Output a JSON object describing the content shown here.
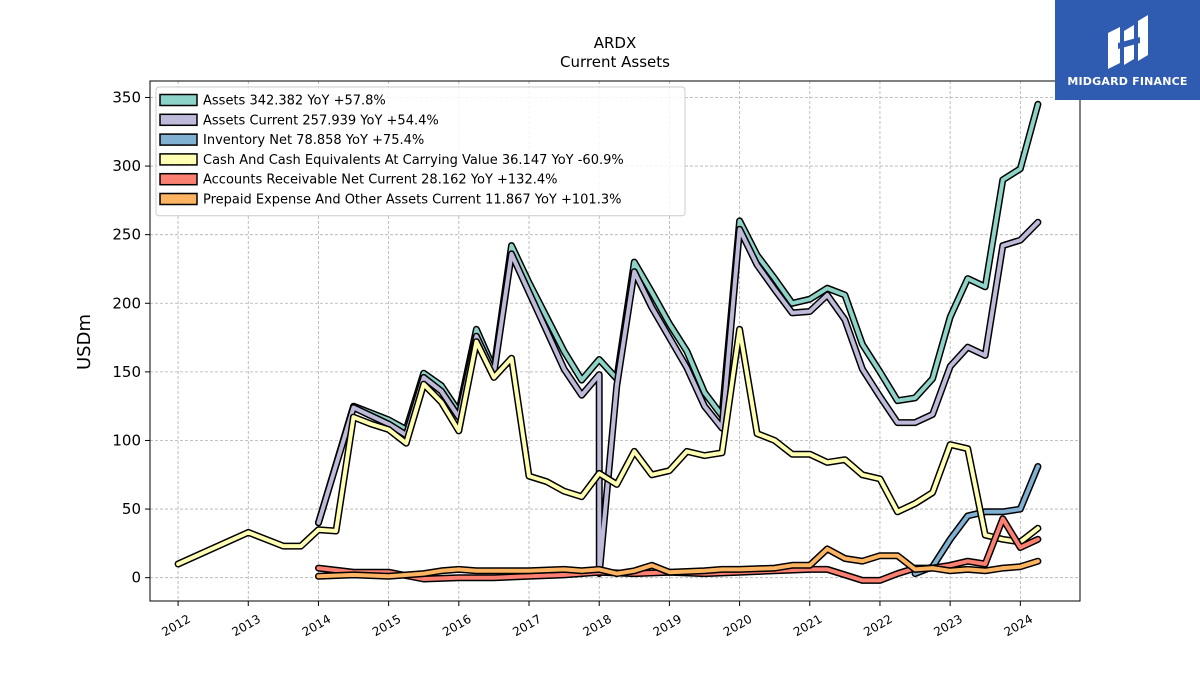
{
  "brand": {
    "name": "MIDGARD FINANCE",
    "bg_color": "#2f5bb0"
  },
  "chart_data": {
    "type": "line",
    "title": "ARDX",
    "subtitle": "Current  Assets",
    "ylabel": "USDm",
    "xlabel": "",
    "ylim": [
      -17,
      362
    ],
    "xlim": [
      2011.6,
      2024.85
    ],
    "yticks": [
      0,
      50,
      100,
      150,
      200,
      250,
      300,
      350
    ],
    "xticks": [
      2012,
      2013,
      2014,
      2015,
      2016,
      2017,
      2018,
      2019,
      2020,
      2021,
      2022,
      2023,
      2024
    ],
    "grid": true,
    "legend_position": "top-left",
    "series": [
      {
        "name": "Assets",
        "legend": "Assets  342.382 YoY +57.8%",
        "color": "#8dd3c7",
        "points": [
          [
            2014.0,
            40
          ],
          [
            2014.5,
            125
          ],
          [
            2014.75,
            120
          ],
          [
            2015.0,
            115
          ],
          [
            2015.25,
            108
          ],
          [
            2015.5,
            149
          ],
          [
            2015.75,
            140
          ],
          [
            2016.0,
            121
          ],
          [
            2016.25,
            181
          ],
          [
            2016.5,
            152
          ],
          [
            2016.75,
            242
          ],
          [
            2017.0,
            215
          ],
          [
            2017.25,
            190
          ],
          [
            2017.5,
            165
          ],
          [
            2017.75,
            144
          ],
          [
            2018.0,
            159
          ],
          [
            2018.25,
            145
          ],
          [
            2018.5,
            230
          ],
          [
            2018.75,
            208
          ],
          [
            2019.0,
            185
          ],
          [
            2019.25,
            165
          ],
          [
            2019.5,
            135
          ],
          [
            2019.75,
            118
          ],
          [
            2020.0,
            260
          ],
          [
            2020.25,
            235
          ],
          [
            2020.5,
            218
          ],
          [
            2020.75,
            200
          ],
          [
            2021.0,
            203
          ],
          [
            2021.25,
            211
          ],
          [
            2021.5,
            206
          ],
          [
            2021.75,
            170
          ],
          [
            2022.0,
            150
          ],
          [
            2022.25,
            129
          ],
          [
            2022.5,
            131
          ],
          [
            2022.75,
            145
          ],
          [
            2023.0,
            190
          ],
          [
            2023.25,
            218
          ],
          [
            2023.5,
            212
          ],
          [
            2023.75,
            290
          ],
          [
            2024.0,
            298
          ],
          [
            2024.25,
            345
          ]
        ]
      },
      {
        "name": "Assets Current",
        "legend": "Assets Current  257.939 YoY +54.4%",
        "color": "#bebada",
        "points": [
          [
            2014.0,
            40
          ],
          [
            2014.5,
            124
          ],
          [
            2014.75,
            118
          ],
          [
            2015.0,
            112
          ],
          [
            2015.25,
            104
          ],
          [
            2015.5,
            146
          ],
          [
            2015.75,
            136
          ],
          [
            2016.0,
            117
          ],
          [
            2016.25,
            176
          ],
          [
            2016.5,
            149
          ],
          [
            2016.75,
            236
          ],
          [
            2017.0,
            208
          ],
          [
            2017.25,
            180
          ],
          [
            2017.5,
            152
          ],
          [
            2017.75,
            133
          ],
          [
            2018.0,
            148
          ],
          [
            2018.001,
            3
          ],
          [
            2018.25,
            140
          ],
          [
            2018.5,
            223
          ],
          [
            2018.75,
            197
          ],
          [
            2019.0,
            175
          ],
          [
            2019.25,
            153
          ],
          [
            2019.5,
            125
          ],
          [
            2019.75,
            109
          ],
          [
            2020.0,
            254
          ],
          [
            2020.25,
            228
          ],
          [
            2020.5,
            210
          ],
          [
            2020.75,
            193
          ],
          [
            2021.0,
            194
          ],
          [
            2021.25,
            206
          ],
          [
            2021.5,
            188
          ],
          [
            2021.75,
            152
          ],
          [
            2022.0,
            132
          ],
          [
            2022.25,
            113
          ],
          [
            2022.5,
            113
          ],
          [
            2022.75,
            119
          ],
          [
            2023.0,
            154
          ],
          [
            2023.25,
            168
          ],
          [
            2023.5,
            162
          ],
          [
            2023.75,
            242
          ],
          [
            2024.0,
            246
          ],
          [
            2024.25,
            259
          ]
        ]
      },
      {
        "name": "Inventory Net",
        "legend": "Inventory Net  78.858 YoY +75.4%",
        "color": "#80b1d3",
        "points": [
          [
            2022.5,
            3
          ],
          [
            2022.75,
            8
          ],
          [
            2023.0,
            28
          ],
          [
            2023.25,
            45
          ],
          [
            2023.5,
            48
          ],
          [
            2023.75,
            48
          ],
          [
            2024.0,
            50
          ],
          [
            2024.25,
            81
          ]
        ]
      },
      {
        "name": "Cash And Cash Equivalents At Carrying Value",
        "legend": "Cash And Cash Equivalents At Carrying Value  36.147 YoY -60.9%",
        "color": "#ffffb3",
        "points": [
          [
            2012.0,
            10
          ],
          [
            2013.0,
            33
          ],
          [
            2013.5,
            23
          ],
          [
            2013.75,
            23
          ],
          [
            2014.0,
            35
          ],
          [
            2014.25,
            34
          ],
          [
            2014.5,
            117
          ],
          [
            2014.75,
            112
          ],
          [
            2015.0,
            108
          ],
          [
            2015.25,
            98
          ],
          [
            2015.5,
            141
          ],
          [
            2015.75,
            128
          ],
          [
            2016.0,
            107
          ],
          [
            2016.25,
            172
          ],
          [
            2016.5,
            146
          ],
          [
            2016.75,
            160
          ],
          [
            2017.0,
            74
          ],
          [
            2017.25,
            70
          ],
          [
            2017.5,
            63
          ],
          [
            2017.75,
            59
          ],
          [
            2018.0,
            76
          ],
          [
            2018.25,
            68
          ],
          [
            2018.5,
            92
          ],
          [
            2018.75,
            75
          ],
          [
            2019.0,
            78
          ],
          [
            2019.25,
            92
          ],
          [
            2019.5,
            89
          ],
          [
            2019.75,
            91
          ],
          [
            2020.0,
            181
          ],
          [
            2020.25,
            105
          ],
          [
            2020.5,
            100
          ],
          [
            2020.75,
            90
          ],
          [
            2021.0,
            90
          ],
          [
            2021.25,
            84
          ],
          [
            2021.5,
            86
          ],
          [
            2021.75,
            75
          ],
          [
            2022.0,
            72
          ],
          [
            2022.25,
            48
          ],
          [
            2022.5,
            54
          ],
          [
            2022.75,
            62
          ],
          [
            2023.0,
            97
          ],
          [
            2023.25,
            94
          ],
          [
            2023.5,
            31
          ],
          [
            2023.75,
            28
          ],
          [
            2024.0,
            26
          ],
          [
            2024.25,
            36
          ]
        ]
      },
      {
        "name": "Accounts Receivable Net Current",
        "legend": "Accounts Receivable Net Current  28.162 YoY +132.4%",
        "color": "#fb8072",
        "points": [
          [
            2014.0,
            7
          ],
          [
            2014.5,
            4
          ],
          [
            2015.0,
            4
          ],
          [
            2015.5,
            -1
          ],
          [
            2016.0,
            0
          ],
          [
            2016.5,
            0
          ],
          [
            2017.0,
            1
          ],
          [
            2017.5,
            2
          ],
          [
            2018.0,
            4
          ],
          [
            2018.5,
            3
          ],
          [
            2019.0,
            4
          ],
          [
            2019.5,
            3
          ],
          [
            2020.0,
            4
          ],
          [
            2020.5,
            5
          ],
          [
            2021.0,
            6
          ],
          [
            2021.25,
            6
          ],
          [
            2021.5,
            2
          ],
          [
            2021.75,
            -2
          ],
          [
            2022.0,
            -2
          ],
          [
            2022.25,
            3
          ],
          [
            2022.5,
            7
          ],
          [
            2022.75,
            7
          ],
          [
            2023.0,
            9
          ],
          [
            2023.25,
            12
          ],
          [
            2023.5,
            10
          ],
          [
            2023.75,
            43
          ],
          [
            2024.0,
            22
          ],
          [
            2024.25,
            28
          ]
        ]
      },
      {
        "name": "Prepaid Expense And Other Assets Current",
        "legend": "Prepaid Expense And Other Assets Current  11.867 YoY +101.3%",
        "color": "#fdb462",
        "points": [
          [
            2014.0,
            1
          ],
          [
            2014.5,
            2
          ],
          [
            2015.0,
            1
          ],
          [
            2015.5,
            3
          ],
          [
            2015.75,
            5
          ],
          [
            2016.0,
            6
          ],
          [
            2016.25,
            5
          ],
          [
            2016.75,
            5
          ],
          [
            2017.0,
            5
          ],
          [
            2017.5,
            6
          ],
          [
            2017.75,
            5
          ],
          [
            2018.0,
            6
          ],
          [
            2018.25,
            3
          ],
          [
            2018.5,
            5
          ],
          [
            2018.75,
            9
          ],
          [
            2019.0,
            4
          ],
          [
            2019.5,
            5
          ],
          [
            2019.75,
            6
          ],
          [
            2020.0,
            6
          ],
          [
            2020.5,
            7
          ],
          [
            2020.75,
            9
          ],
          [
            2021.0,
            9
          ],
          [
            2021.25,
            21
          ],
          [
            2021.5,
            14
          ],
          [
            2021.75,
            12
          ],
          [
            2022.0,
            16
          ],
          [
            2022.25,
            16
          ],
          [
            2022.5,
            6
          ],
          [
            2022.75,
            7
          ],
          [
            2023.0,
            5
          ],
          [
            2023.25,
            6
          ],
          [
            2023.5,
            5
          ],
          [
            2023.75,
            7
          ],
          [
            2024.0,
            8
          ],
          [
            2024.25,
            12
          ]
        ]
      }
    ]
  }
}
